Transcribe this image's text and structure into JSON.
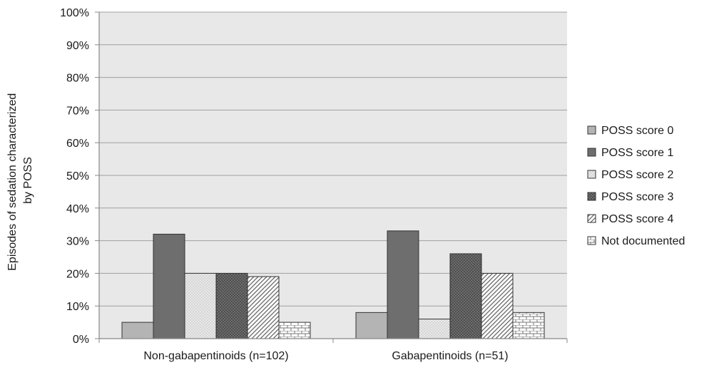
{
  "chart_data": {
    "type": "bar",
    "title": "",
    "xlabel": "",
    "ylabel_lines": [
      "Episodes of sedation characterized",
      "by POSS"
    ],
    "ylim": [
      0,
      100
    ],
    "yticks": [
      "0%",
      "10%",
      "20%",
      "30%",
      "40%",
      "50%",
      "60%",
      "70%",
      "80%",
      "90%",
      "100%"
    ],
    "grid": true,
    "legend_placement": "right",
    "categories": [
      "Non-gabapentinoids (n=102)",
      "Gabapentinoids (n=51)"
    ],
    "series": [
      {
        "name": "POSS score 0",
        "values": [
          5,
          8
        ],
        "fill": "#b4b4b4",
        "pattern": "solid"
      },
      {
        "name": "POSS score 1",
        "values": [
          32,
          33
        ],
        "fill": "#6e6e6e",
        "pattern": "solid"
      },
      {
        "name": "POSS score 2",
        "values": [
          20,
          6
        ],
        "fill": "#d2d2d2",
        "pattern": "dots"
      },
      {
        "name": "POSS score 3",
        "values": [
          20,
          26
        ],
        "fill": "#555555",
        "pattern": "dark-dots"
      },
      {
        "name": "POSS score 4",
        "values": [
          19,
          20
        ],
        "fill": "#ffffff",
        "pattern": "diagonal"
      },
      {
        "name": "Not documented",
        "values": [
          5,
          8
        ],
        "fill": "#ffffff",
        "pattern": "brick"
      }
    ],
    "colors": {
      "plot_background": "#e8e8e8",
      "gridline": "#a0a0a0",
      "axis": "#888888",
      "bar_stroke": "#333333"
    }
  }
}
